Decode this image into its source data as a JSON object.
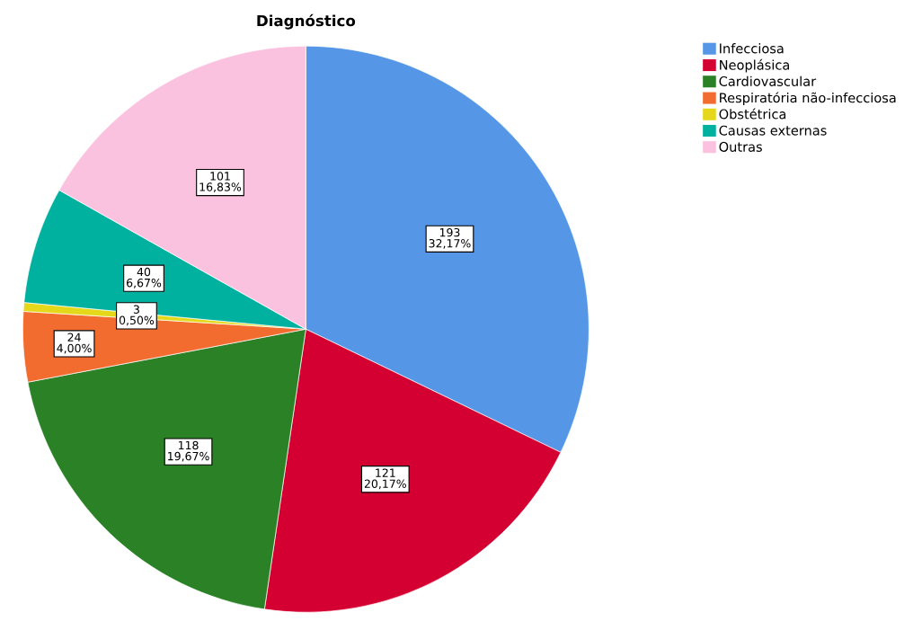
{
  "chart_data": {
    "type": "pie",
    "title": "Diagnóstico",
    "categories": [
      "Infecciosa",
      "Neoplásica",
      "Cardiovascular",
      "Respiratória não-infecciosa",
      "Obstétrica",
      "Causas externas",
      "Outras"
    ],
    "values": [
      193,
      121,
      118,
      24,
      3,
      40,
      101
    ],
    "colors": [
      "#5597e6",
      "#d50032",
      "#2b8125",
      "#f26b2f",
      "#e5d81a",
      "#00b1a0",
      "#fbc2e0"
    ],
    "value_labels": [
      "193\n32,17%",
      "121\n20,17%",
      "118\n19,67%",
      "24\n4,00%",
      "3\n0,50%",
      "40\n6,67%",
      "101\n16,83%"
    ],
    "legend": "top right"
  }
}
